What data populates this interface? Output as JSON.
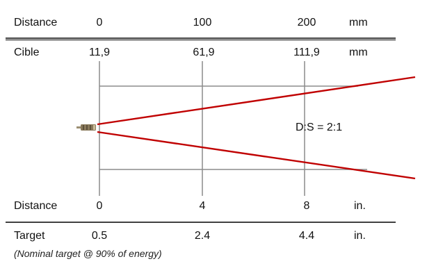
{
  "top_table": {
    "distance_label": "Distance",
    "distance_values": [
      "0",
      "100",
      "200"
    ],
    "distance_unit": "mm",
    "target_label": "Cible",
    "target_values": [
      "11,9",
      "61,9",
      "111,9"
    ],
    "target_unit": "mm"
  },
  "ratio_label": "D:S = 2:1",
  "bottom_table": {
    "distance_label": "Distance",
    "distance_values": [
      "0",
      "4",
      "8"
    ],
    "distance_unit": "in.",
    "target_label": "Target",
    "target_values": [
      "0.5",
      "2.4",
      "4.4"
    ],
    "target_unit": "in."
  },
  "footnote": "(Nominal target @ 90% of energy)",
  "colors": {
    "beam": "#c00000",
    "grid": "#8c8c8c",
    "rule": "#000000"
  },
  "icons": {
    "sensor": "sensor-icon"
  }
}
